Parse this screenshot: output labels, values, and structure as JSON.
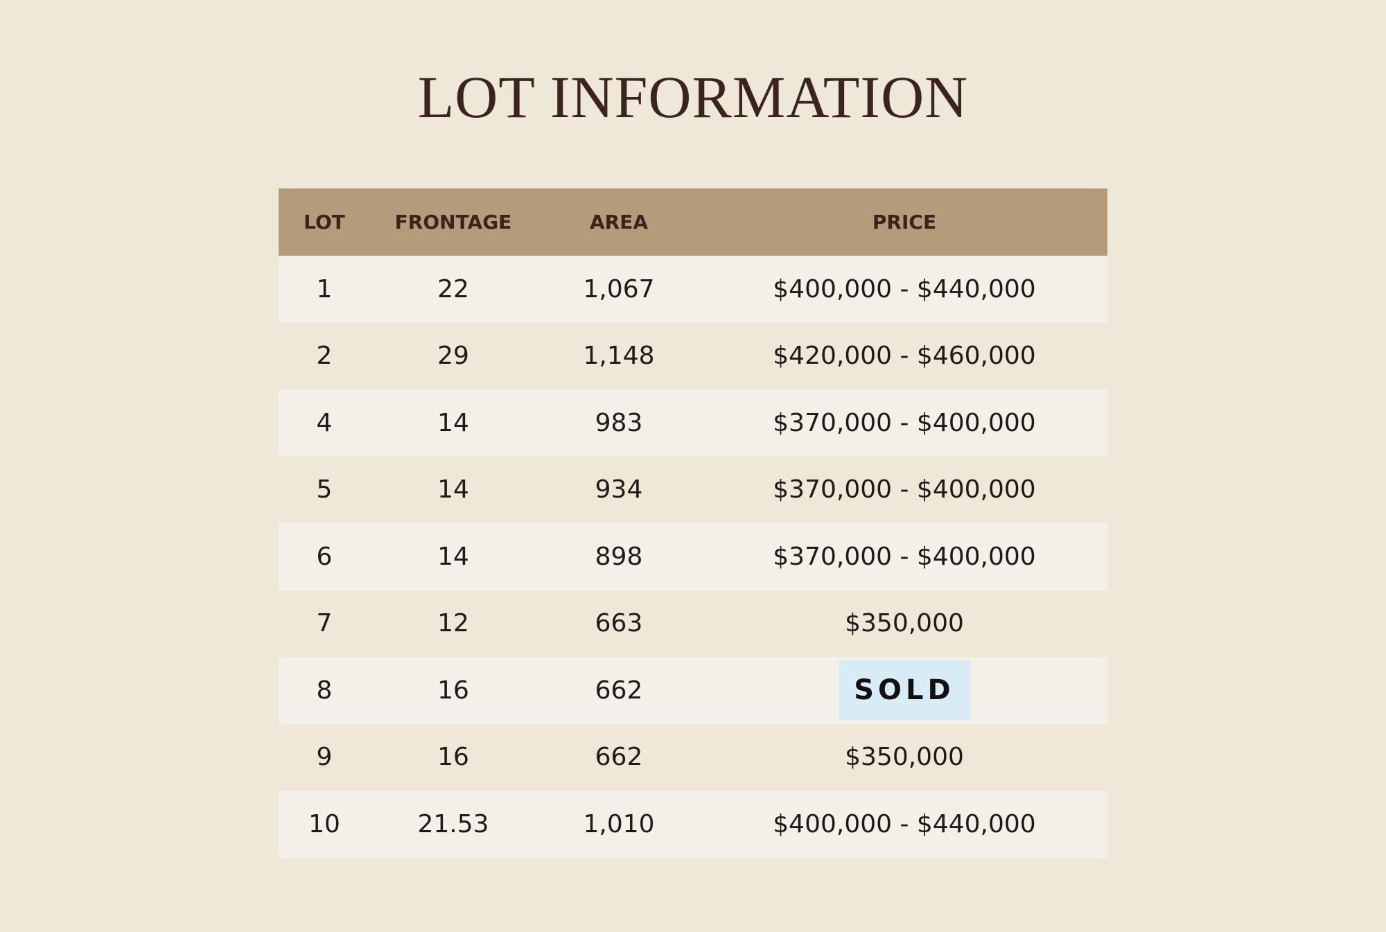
{
  "header": {
    "title": "LOT INFORMATION"
  },
  "table": {
    "columns": [
      "LOT",
      "FRONTAGE",
      "AREA",
      "PRICE"
    ],
    "rows": [
      [
        "1",
        "22",
        "1,067",
        "$400,000 - $440,000"
      ],
      [
        "2",
        "29",
        "1,148",
        "$420,000 - $460,000"
      ],
      [
        "4",
        "14",
        "983",
        "$370,000 - $400,000"
      ],
      [
        "5",
        "14",
        "934",
        "$370,000 - $400,000"
      ],
      [
        "6",
        "14",
        "898",
        "$370,000 - $400,000"
      ],
      [
        "7",
        "12",
        "663",
        "$350,000"
      ],
      [
        "8",
        "16",
        "662",
        "SOLD"
      ],
      [
        "9",
        "16",
        "662",
        "$350,000"
      ],
      [
        "10",
        "21.53",
        "1,010",
        "$400,000 - $440,000"
      ]
    ]
  }
}
